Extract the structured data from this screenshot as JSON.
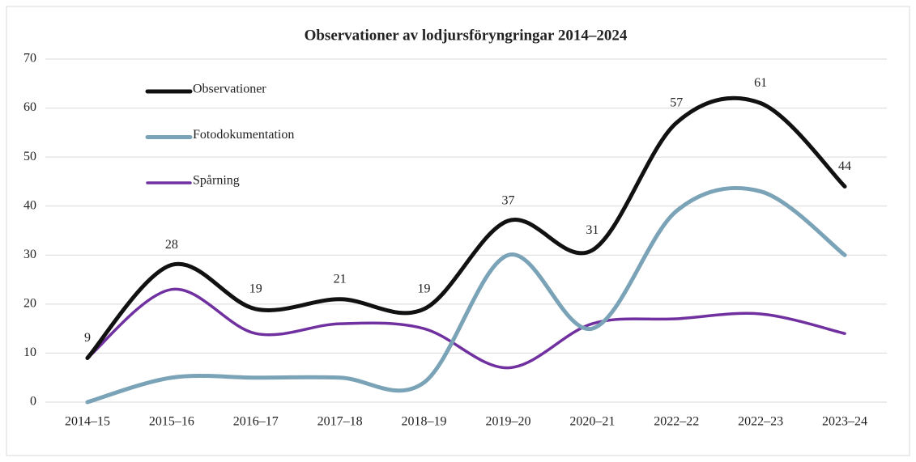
{
  "chart_data": {
    "type": "line",
    "title": "Observationer av lodjursföryngringar 2014–2024",
    "categories": [
      "2014–15",
      "2015–16",
      "2016–17",
      "2017–18",
      "2018–19",
      "2019–20",
      "2020–21",
      "2022–22",
      "2022–23",
      "2023–24"
    ],
    "series": [
      {
        "name": "Observationer",
        "color": "#111111",
        "values": [
          9,
          28,
          19,
          21,
          19,
          37,
          31,
          57,
          61,
          44
        ],
        "data_labels": true
      },
      {
        "name": "Fotodokumentation",
        "color": "#7ba3b8",
        "values": [
          0,
          5,
          5,
          5,
          4,
          30,
          15,
          39,
          43,
          30
        ],
        "data_labels": false
      },
      {
        "name": "Spårning",
        "color": "#7030a0",
        "values": [
          9,
          23,
          14,
          16,
          15,
          7,
          16,
          17,
          18,
          14
        ],
        "data_labels": false
      }
    ],
    "ylim": [
      0,
      70
    ],
    "yticks": [
      0,
      10,
      20,
      30,
      40,
      50,
      60,
      70
    ],
    "grid": true,
    "smooth": true,
    "legend": "upper left"
  }
}
